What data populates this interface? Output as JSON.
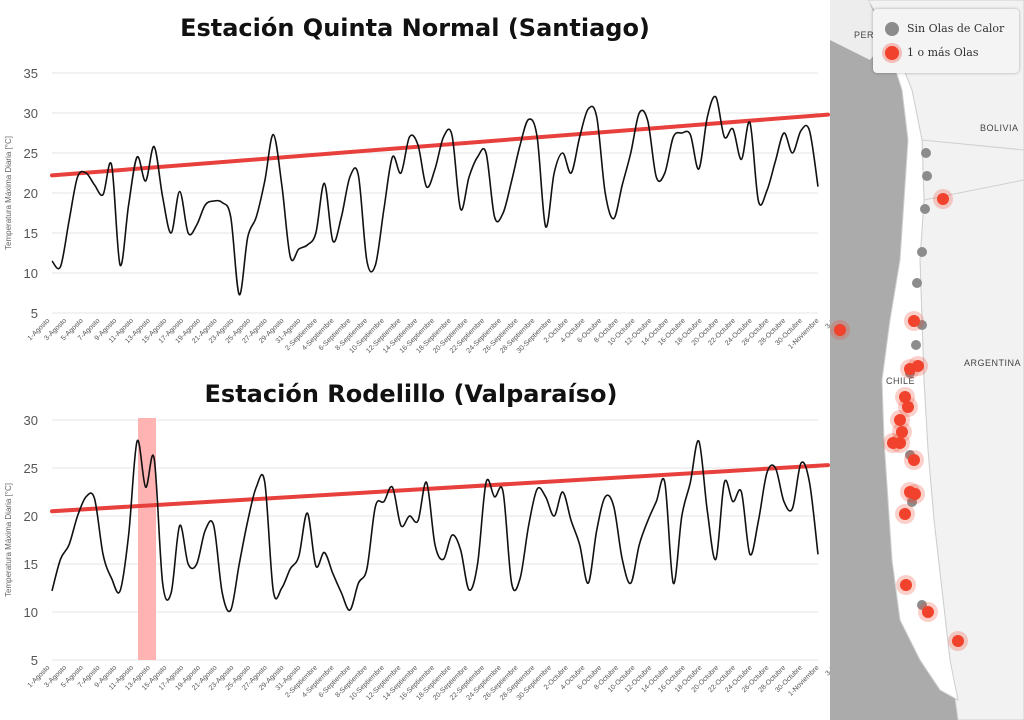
{
  "colors": {
    "trend": "#e8403c",
    "line": "#111111",
    "highlight": "#ffb3b3",
    "station_gray": "#8c8c8c",
    "station_red": "#f0422c",
    "map_land": "#f5f5f5",
    "map_bg": "#ababab"
  },
  "map": {
    "legend": {
      "no_waves": "Sin Olas de Calor",
      "waves": "1 o más Olas"
    },
    "labels": {
      "peru": "PERÚ",
      "bolivia": "BOLIVIA",
      "argentina": "ARGENTINA",
      "chile": "CHILE"
    }
  },
  "chart_data": [
    {
      "type": "line",
      "title": "Estación Quinta Normal (Santiago)",
      "ylabel": "Temperatura Máxima Diaria [°C]",
      "xlabel": "",
      "ylim": [
        5,
        35
      ],
      "yticks": [
        5,
        10,
        15,
        20,
        25,
        30,
        35
      ],
      "grid": true,
      "x_tick_labels": [
        "1-Agosto",
        "3-Agosto",
        "5-Agosto",
        "7-Agosto",
        "9-Agosto",
        "11-Agosto",
        "13-Agosto",
        "15-Agosto",
        "17-Agosto",
        "19-Agosto",
        "21-Agosto",
        "23-Agosto",
        "25-Agosto",
        "27-Agosto",
        "29-Agosto",
        "31-Agosto",
        "2-Septiembre",
        "4-Septiembre",
        "6-Septiembre",
        "8-Septiembre",
        "10-Septiembre",
        "12-Septiembre",
        "14-Septiembre",
        "16-Septiembre",
        "18-Septiembre",
        "20-Septiembre",
        "22-Septiembre",
        "24-Septiembre",
        "26-Septiembre",
        "28-Septiembre",
        "30-Septiembre",
        "2-Octubre",
        "4-Octubre",
        "6-Octubre",
        "8-Octubre",
        "10-Octubre",
        "12-Octubre",
        "14-Octubre",
        "16-Octubre",
        "18-Octubre",
        "20-Octubre",
        "22-Octubre",
        "24-Octubre",
        "26-Octubre",
        "28-Octubre",
        "30-Octubre",
        "1-Noviembre",
        "3-N"
      ],
      "series": [
        {
          "values": [
            11.5,
            10.8,
            16.5,
            22,
            22.5,
            21,
            19.8,
            23.5,
            11,
            18.5,
            24.5,
            21.5,
            25.8,
            19.5,
            15,
            20.2,
            15,
            16,
            18.5,
            19,
            18.8,
            17,
            7.3,
            14.5,
            17,
            21.5,
            27.3,
            21,
            12,
            13,
            13.5,
            15,
            21.2,
            14,
            17,
            22,
            22.2,
            11.5,
            11,
            18,
            24.5,
            22.5,
            27,
            26,
            20.8,
            23,
            27,
            27.2,
            18,
            22,
            24.5,
            25,
            17,
            17.5,
            21.5,
            26,
            29.2,
            27,
            15.8,
            22.5,
            25,
            22.5,
            27,
            30.5,
            29.5,
            20,
            16.8,
            21,
            25,
            30,
            29,
            22,
            22.5,
            27,
            27.5,
            27.3,
            23,
            29.5,
            32,
            27,
            28,
            24.2,
            28.8,
            19,
            20.3,
            24,
            27.5,
            25,
            27.8,
            27.8,
            20.8
          ]
        }
      ],
      "trend": [
        22.2,
        29.8
      ]
    },
    {
      "type": "line",
      "title": "Estación Rodelillo (Valparaíso)",
      "ylabel": "Temperatura Máxima Diaria [°C]",
      "xlabel": "",
      "ylim": [
        5,
        30
      ],
      "yticks": [
        5,
        10,
        15,
        20,
        25,
        30
      ],
      "grid": true,
      "highlight_index": [
        11,
        12
      ],
      "x_tick_labels": [
        "1-Agosto",
        "3-Agosto",
        "5-Agosto",
        "7-Agosto",
        "9-Agosto",
        "11-Agosto",
        "13-Agosto",
        "15-Agosto",
        "17-Agosto",
        "19-Agosto",
        "21-Agosto",
        "23-Agosto",
        "25-Agosto",
        "27-Agosto",
        "29-Agosto",
        "31-Agosto",
        "2-Septiembre",
        "4-Septiembre",
        "6-Septiembre",
        "8-Septiembre",
        "10-Septiembre",
        "12-Septiembre",
        "14-Septiembre",
        "16-Septiembre",
        "18-Septiembre",
        "20-Septiembre",
        "22-Septiembre",
        "24-Septiembre",
        "26-Septiembre",
        "28-Septiembre",
        "30-Septiembre",
        "2-Octubre",
        "4-Octubre",
        "6-Octubre",
        "8-Octubre",
        "10-Octubre",
        "12-Octubre",
        "14-Octubre",
        "16-Octubre",
        "18-Octubre",
        "20-Octubre",
        "22-Octubre",
        "24-Octubre",
        "26-Octubre",
        "28-Octubre",
        "30-Octubre",
        "1-Noviembre",
        "3-N"
      ],
      "series": [
        {
          "values": [
            12.2,
            15.5,
            17,
            20,
            22,
            21.8,
            16,
            13.5,
            12.2,
            18,
            27.8,
            23,
            26,
            13,
            12,
            19,
            15,
            15,
            18.5,
            19,
            12,
            10.2,
            15,
            19.5,
            23,
            23.5,
            12.2,
            12.5,
            14.5,
            15.8,
            20.3,
            14.8,
            16.2,
            14,
            12,
            10.2,
            13,
            14.5,
            21,
            21.5,
            23,
            19,
            20,
            19.5,
            23.5,
            17,
            15.5,
            18,
            16.5,
            12.3,
            15,
            23.5,
            22,
            22.5,
            13,
            13.5,
            19,
            22.8,
            22,
            20,
            22.5,
            19.5,
            17,
            13,
            18.5,
            22,
            21,
            15.5,
            13,
            17,
            19.5,
            21.5,
            23.5,
            13,
            20,
            23.5,
            27.8,
            20.5,
            15.5,
            23.5,
            21.5,
            22.5,
            16,
            19.5,
            24.5,
            25,
            21.5,
            20.8,
            25.5,
            23.5,
            16
          ]
        }
      ],
      "trend": [
        20.5,
        25.3
      ]
    }
  ]
}
